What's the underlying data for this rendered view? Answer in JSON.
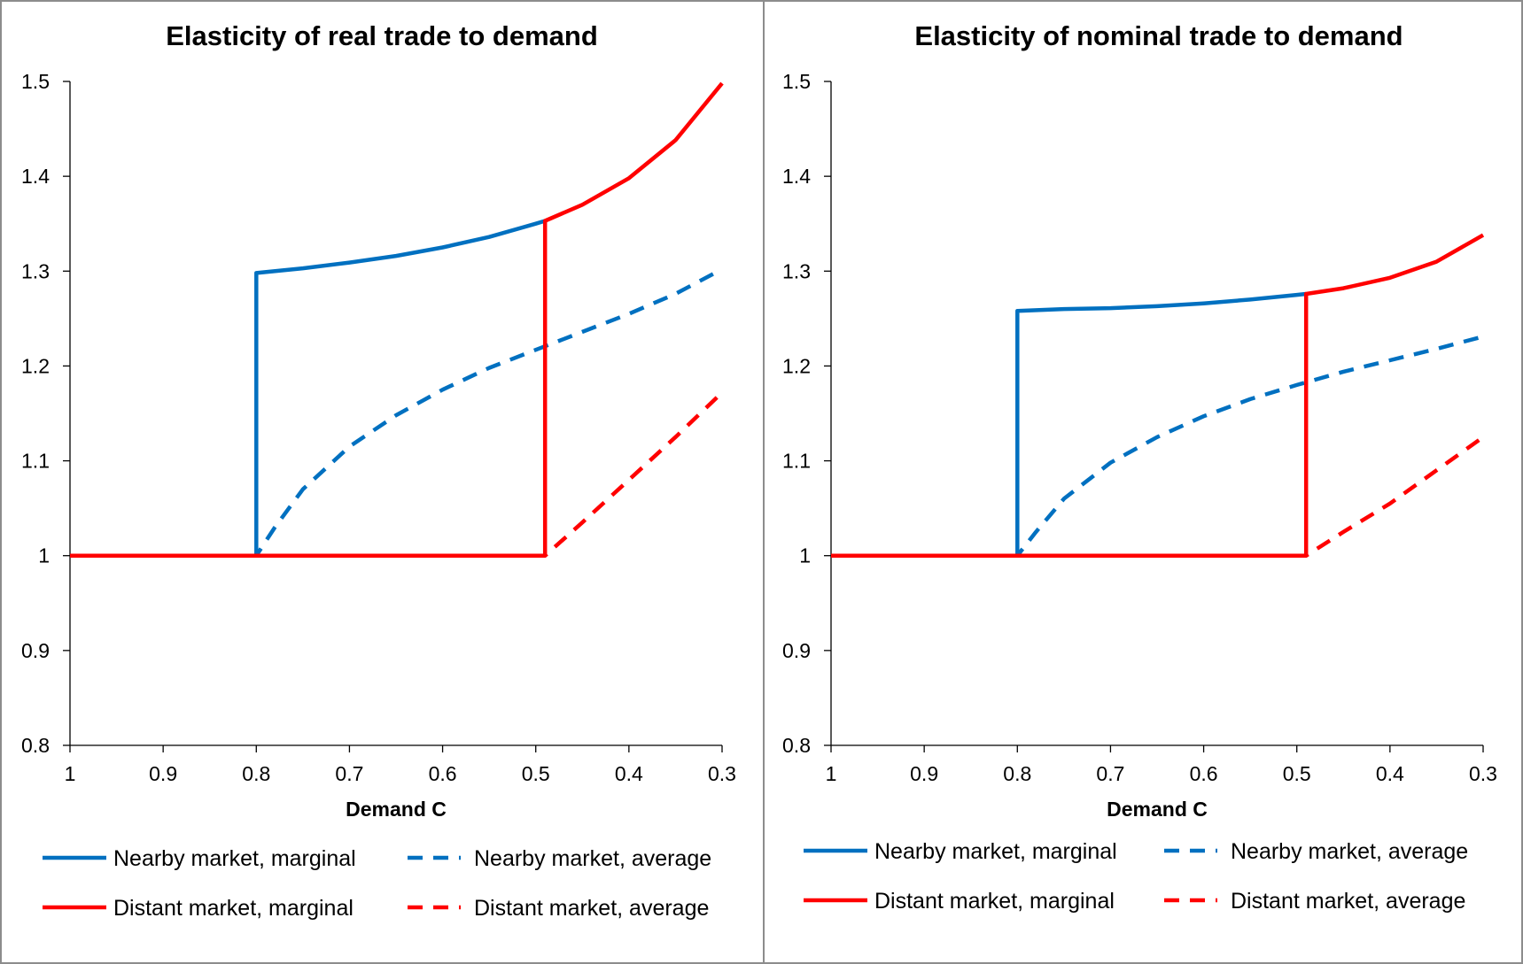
{
  "chart_data": [
    {
      "type": "line",
      "title": "Elasticity of real trade to demand",
      "xlabel": "Demand C",
      "ylabel": "",
      "xlim": [
        1,
        0.3
      ],
      "x_reversed": true,
      "ylim": [
        0.8,
        1.5
      ],
      "xticks": [
        1,
        0.9,
        0.8,
        0.7,
        0.6,
        0.5,
        0.4,
        0.3
      ],
      "yticks": [
        0.8,
        0.9,
        1,
        1.1,
        1.2,
        1.3,
        1.4,
        1.5
      ],
      "xtick_labels": [
        "1",
        "0.9",
        "0.8",
        "0.7",
        "0.6",
        "0.5",
        "0.4",
        "0.3"
      ],
      "ytick_labels": [
        "0.8",
        "0.9",
        "1",
        "1.1",
        "1.2",
        "1.3",
        "1.4",
        "1.5"
      ],
      "grid": false,
      "legend_position": "bottom",
      "series": [
        {
          "name": "Nearby market, marginal",
          "color": "#0070C0",
          "style": "solid",
          "x": [
            1,
            0.8,
            0.8,
            0.75,
            0.7,
            0.65,
            0.6,
            0.55,
            0.5,
            0.49
          ],
          "y": [
            1,
            1,
            1.298,
            1.303,
            1.309,
            1.316,
            1.325,
            1.336,
            1.35,
            1.353
          ]
        },
        {
          "name": "Nearby market, average",
          "color": "#0070C0",
          "style": "dashed",
          "x": [
            1,
            0.8,
            0.78,
            0.75,
            0.7,
            0.65,
            0.6,
            0.55,
            0.5,
            0.45,
            0.4,
            0.35,
            0.3
          ],
          "y": [
            1,
            1,
            1.03,
            1.07,
            1.115,
            1.148,
            1.175,
            1.198,
            1.217,
            1.236,
            1.255,
            1.276,
            1.302
          ]
        },
        {
          "name": "Distant market, marginal",
          "color": "#FF0000",
          "style": "solid",
          "x": [
            1,
            0.49,
            0.49,
            0.45,
            0.4,
            0.35,
            0.3
          ],
          "y": [
            1,
            1,
            1.353,
            1.37,
            1.398,
            1.438,
            1.498
          ]
        },
        {
          "name": "Distant market, average",
          "color": "#FF0000",
          "style": "dashed",
          "x": [
            1,
            0.49,
            0.45,
            0.4,
            0.35,
            0.3
          ],
          "y": [
            1,
            1,
            1.035,
            1.08,
            1.125,
            1.172
          ]
        }
      ]
    },
    {
      "type": "line",
      "title": "Elasticity of nominal trade to demand",
      "xlabel": "Demand C",
      "ylabel": "",
      "xlim": [
        1,
        0.3
      ],
      "x_reversed": true,
      "ylim": [
        0.8,
        1.5
      ],
      "xticks": [
        1,
        0.9,
        0.8,
        0.7,
        0.6,
        0.5,
        0.4,
        0.3
      ],
      "yticks": [
        0.8,
        0.9,
        1,
        1.1,
        1.2,
        1.3,
        1.4,
        1.5
      ],
      "xtick_labels": [
        "1",
        "0.9",
        "0.8",
        "0.7",
        "0.6",
        "0.5",
        "0.4",
        "0.3"
      ],
      "ytick_labels": [
        "0.8",
        "0.9",
        "1",
        "1.1",
        "1.2",
        "1.3",
        "1.4",
        "1.5"
      ],
      "grid": false,
      "legend_position": "bottom",
      "series": [
        {
          "name": "Nearby market, marginal",
          "color": "#0070C0",
          "style": "solid",
          "x": [
            1,
            0.8,
            0.8,
            0.75,
            0.7,
            0.65,
            0.6,
            0.55,
            0.5,
            0.49
          ],
          "y": [
            1,
            1,
            1.258,
            1.26,
            1.261,
            1.263,
            1.266,
            1.27,
            1.275,
            1.276
          ]
        },
        {
          "name": "Nearby market, average",
          "color": "#0070C0",
          "style": "dashed",
          "x": [
            1,
            0.8,
            0.78,
            0.75,
            0.7,
            0.65,
            0.6,
            0.55,
            0.5,
            0.45,
            0.4,
            0.35,
            0.3
          ],
          "y": [
            1,
            1,
            1.025,
            1.06,
            1.098,
            1.125,
            1.147,
            1.165,
            1.18,
            1.194,
            1.206,
            1.218,
            1.231
          ]
        },
        {
          "name": "Distant market, marginal",
          "color": "#FF0000",
          "style": "solid",
          "x": [
            1,
            0.49,
            0.49,
            0.45,
            0.4,
            0.35,
            0.3
          ],
          "y": [
            1,
            1,
            1.276,
            1.282,
            1.293,
            1.31,
            1.338
          ]
        },
        {
          "name": "Distant market, average",
          "color": "#FF0000",
          "style": "dashed",
          "x": [
            1,
            0.49,
            0.45,
            0.4,
            0.35,
            0.3
          ],
          "y": [
            1,
            1,
            1.025,
            1.055,
            1.09,
            1.125
          ]
        }
      ]
    }
  ]
}
